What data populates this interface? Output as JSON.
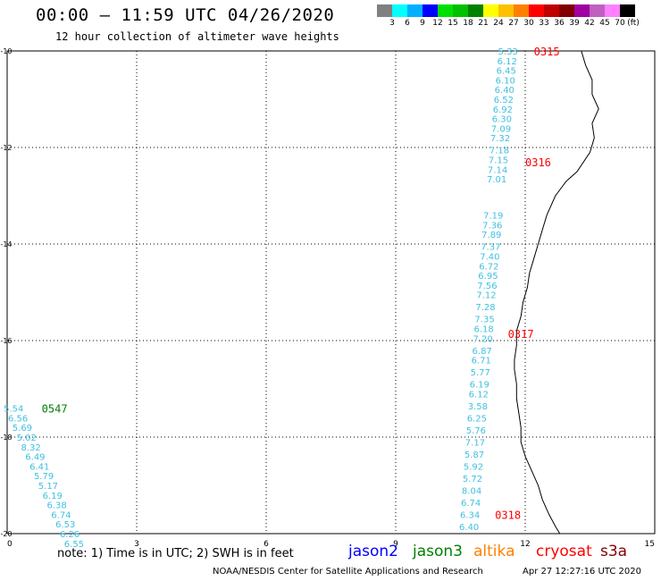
{
  "header": {
    "title": "00:00 – 11:59 UTC 04/26/2020",
    "subtitle": "12 hour collection of altimeter wave heights"
  },
  "colorscale": {
    "colors": [
      "#808080",
      "#00ffff",
      "#00b0ff",
      "#0000ff",
      "#00e000",
      "#00c000",
      "#008000",
      "#ffff00",
      "#ffc000",
      "#ff8000",
      "#ff0000",
      "#c00000",
      "#800000",
      "#a000a0",
      "#c060c0",
      "#ff80ff",
      "#000000"
    ],
    "labels": [
      "3",
      "6",
      "9",
      "12",
      "15",
      "18",
      "21",
      "24",
      "27",
      "30",
      "33",
      "36",
      "39",
      "42",
      "45",
      "70",
      "(ft)"
    ]
  },
  "legend": {
    "satellites": [
      {
        "name": "jason2",
        "color": "#0000ff"
      },
      {
        "name": "jason3",
        "color": "#008000"
      },
      {
        "name": "altika",
        "color": "#ff8000"
      },
      {
        "name": "cryosat",
        "color": "#ff0000"
      },
      {
        "name": "s3a",
        "color": "#800000"
      }
    ]
  },
  "footer": {
    "note": "note: 1) Time is in UTC; 2) SWH is in feet",
    "credit": "NOAA/NESDIS Center for Satellite Applications and Research",
    "timestamp": "Apr 27 12:27:16 UTC 2020"
  },
  "chart_data": {
    "type": "scatter",
    "xlim": [
      0,
      15
    ],
    "ylim": [
      -20,
      -10
    ],
    "xticks": [
      "0",
      "3",
      "6",
      "9",
      "12",
      "15"
    ],
    "yticks": [
      "-10",
      "-12",
      "-14",
      "-16",
      "-18",
      "-20"
    ],
    "grid": true,
    "pass_labels": [
      {
        "text": "0315",
        "x": 12.2,
        "y": -10.0,
        "color": "#ff0000"
      },
      {
        "text": "0316",
        "x": 12.0,
        "y": -12.3,
        "color": "#ff0000"
      },
      {
        "text": "0317",
        "x": 11.6,
        "y": -15.85,
        "color": "#ff0000"
      },
      {
        "text": "0318",
        "x": 11.3,
        "y": -19.6,
        "color": "#ff0000"
      },
      {
        "text": "0547",
        "x": 0.8,
        "y": -17.4,
        "color": "#008000"
      }
    ],
    "tracks": [
      {
        "color": "#40c0e0",
        "points": [
          {
            "x": 11.6,
            "y": -10.0,
            "v": "5.33"
          },
          {
            "x": 11.58,
            "y": -10.2,
            "v": "6.12"
          },
          {
            "x": 11.56,
            "y": -10.4,
            "v": "6.45"
          },
          {
            "x": 11.54,
            "y": -10.6,
            "v": "6.10"
          },
          {
            "x": 11.52,
            "y": -10.8,
            "v": "6.40"
          },
          {
            "x": 11.5,
            "y": -11.0,
            "v": "6.52"
          },
          {
            "x": 11.48,
            "y": -11.2,
            "v": "6.92"
          },
          {
            "x": 11.46,
            "y": -11.4,
            "v": "6.30"
          },
          {
            "x": 11.44,
            "y": -11.6,
            "v": "7.09"
          },
          {
            "x": 11.42,
            "y": -11.8,
            "v": "7.32"
          },
          {
            "x": 11.4,
            "y": -12.05,
            "v": "7.18"
          },
          {
            "x": 11.38,
            "y": -12.25,
            "v": "7.15"
          },
          {
            "x": 11.36,
            "y": -12.45,
            "v": "7.14"
          },
          {
            "x": 11.34,
            "y": -12.65,
            "v": "7.01"
          },
          {
            "x": 11.26,
            "y": -13.4,
            "v": "7.19"
          },
          {
            "x": 11.24,
            "y": -13.6,
            "v": "7.36"
          },
          {
            "x": 11.22,
            "y": -13.8,
            "v": "7.89"
          },
          {
            "x": 11.2,
            "y": -14.05,
            "v": "7.37"
          },
          {
            "x": 11.18,
            "y": -14.25,
            "v": "7.40"
          },
          {
            "x": 11.16,
            "y": -14.45,
            "v": "6.72"
          },
          {
            "x": 11.14,
            "y": -14.65,
            "v": "6.95"
          },
          {
            "x": 11.12,
            "y": -14.85,
            "v": "7.56"
          },
          {
            "x": 11.1,
            "y": -15.05,
            "v": "7.12"
          },
          {
            "x": 11.08,
            "y": -15.3,
            "v": "7.28"
          },
          {
            "x": 11.06,
            "y": -15.55,
            "v": "7.35"
          },
          {
            "x": 11.04,
            "y": -15.75,
            "v": "6.18"
          },
          {
            "x": 11.02,
            "y": -15.95,
            "v": "7.20"
          },
          {
            "x": 11.0,
            "y": -16.2,
            "v": "6.87"
          },
          {
            "x": 10.98,
            "y": -16.4,
            "v": "6.71"
          },
          {
            "x": 10.96,
            "y": -16.65,
            "v": "5.77"
          },
          {
            "x": 10.94,
            "y": -16.9,
            "v": "6.19"
          },
          {
            "x": 10.92,
            "y": -17.1,
            "v": "6.12"
          },
          {
            "x": 10.9,
            "y": -17.35,
            "v": "3.58"
          },
          {
            "x": 10.88,
            "y": -17.6,
            "v": "6.25"
          },
          {
            "x": 10.86,
            "y": -17.85,
            "v": "5.76"
          },
          {
            "x": 10.84,
            "y": -18.1,
            "v": "7.17"
          },
          {
            "x": 10.82,
            "y": -18.35,
            "v": "5.87"
          },
          {
            "x": 10.8,
            "y": -18.6,
            "v": "5.92"
          },
          {
            "x": 10.78,
            "y": -18.85,
            "v": "5.72"
          },
          {
            "x": 10.76,
            "y": -19.1,
            "v": "8.04"
          },
          {
            "x": 10.74,
            "y": -19.35,
            "v": "6.74"
          },
          {
            "x": 10.72,
            "y": -19.6,
            "v": "6.34"
          },
          {
            "x": 10.7,
            "y": -19.85,
            "v": "6.40"
          }
        ]
      },
      {
        "color": "#40c0e0",
        "points": [
          {
            "x": 0.15,
            "y": -17.4,
            "v": "5.54"
          },
          {
            "x": 0.25,
            "y": -17.6,
            "v": "6.56"
          },
          {
            "x": 0.35,
            "y": -17.8,
            "v": "5.69"
          },
          {
            "x": 0.45,
            "y": -18.0,
            "v": "5.02"
          },
          {
            "x": 0.55,
            "y": -18.2,
            "v": "8.32"
          },
          {
            "x": 0.65,
            "y": -18.4,
            "v": "6.49"
          },
          {
            "x": 0.75,
            "y": -18.6,
            "v": "6.41"
          },
          {
            "x": 0.85,
            "y": -18.8,
            "v": "5.79"
          },
          {
            "x": 0.95,
            "y": -19.0,
            "v": "5.17"
          },
          {
            "x": 1.05,
            "y": -19.2,
            "v": "6.19"
          },
          {
            "x": 1.15,
            "y": -19.4,
            "v": "6.38"
          },
          {
            "x": 1.25,
            "y": -19.6,
            "v": "6.74"
          },
          {
            "x": 1.35,
            "y": -19.8,
            "v": "6.53"
          },
          {
            "x": 1.45,
            "y": -20.0,
            "v": "6.26"
          },
          {
            "x": 1.55,
            "y": -20.2,
            "v": "6.55"
          }
        ]
      }
    ],
    "coastline": [
      [
        13.3,
        -10.0
      ],
      [
        13.4,
        -10.3
      ],
      [
        13.55,
        -10.6
      ],
      [
        13.55,
        -10.9
      ],
      [
        13.7,
        -11.2
      ],
      [
        13.55,
        -11.5
      ],
      [
        13.6,
        -11.8
      ],
      [
        13.5,
        -12.1
      ],
      [
        13.2,
        -12.5
      ],
      [
        12.95,
        -12.7
      ],
      [
        12.7,
        -13.0
      ],
      [
        12.5,
        -13.4
      ],
      [
        12.4,
        -13.7
      ],
      [
        12.3,
        -14.0
      ],
      [
        12.2,
        -14.3
      ],
      [
        12.1,
        -14.6
      ],
      [
        12.05,
        -14.9
      ],
      [
        11.95,
        -15.2
      ],
      [
        11.9,
        -15.5
      ],
      [
        11.8,
        -15.8
      ],
      [
        11.8,
        -16.1
      ],
      [
        11.75,
        -16.4
      ],
      [
        11.75,
        -16.6
      ],
      [
        11.8,
        -16.9
      ],
      [
        11.8,
        -17.2
      ],
      [
        11.85,
        -17.5
      ],
      [
        11.9,
        -17.8
      ],
      [
        11.9,
        -18.1
      ],
      [
        12.0,
        -18.4
      ],
      [
        12.15,
        -18.7
      ],
      [
        12.3,
        -19.0
      ],
      [
        12.4,
        -19.3
      ],
      [
        12.55,
        -19.6
      ],
      [
        12.7,
        -19.85
      ],
      [
        12.8,
        -20.0
      ]
    ]
  }
}
